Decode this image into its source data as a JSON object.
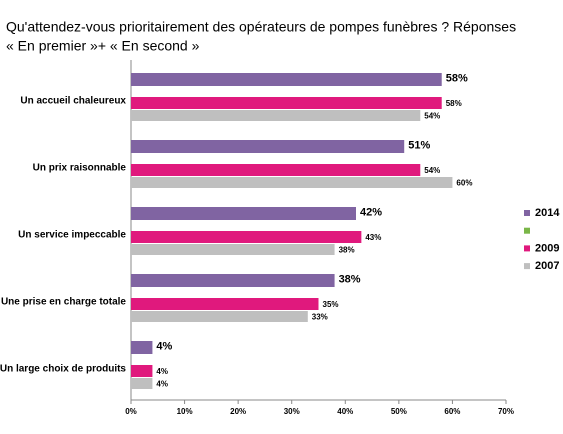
{
  "chart_data": {
    "type": "bar",
    "orientation": "horizontal",
    "title": "Qu'attendez-vous prioritairement des opérateurs de pompes funèbres ? Réponses",
    "subtitle": "« En premier »+ « En second »",
    "categories": [
      "Un accueil chaleureux",
      "Un prix raisonnable",
      "Un service impeccable",
      "Une prise en charge totale",
      "Un large choix de produits"
    ],
    "series": [
      {
        "name": "2014",
        "color": "#8064a2",
        "values": [
          58,
          51,
          42,
          38,
          4
        ],
        "value_labels": [
          "58%",
          "51%",
          "42%",
          "38%",
          "4%"
        ]
      },
      {
        "name": null,
        "color": "#7ab648",
        "values": [
          null,
          null,
          null,
          null,
          null
        ]
      },
      {
        "name": "2009",
        "color": "#e0197d",
        "values": [
          58,
          54,
          43,
          35,
          4
        ],
        "value_labels": [
          "58%",
          "54%",
          "43%",
          "35%",
          "4%"
        ]
      },
      {
        "name": "2007",
        "color": "#bfbfbf",
        "values": [
          54,
          60,
          38,
          33,
          4
        ],
        "value_labels": [
          "54%",
          "60%",
          "38%",
          "33%",
          "4%"
        ]
      }
    ],
    "xlim": [
      0,
      70
    ],
    "xticks": [
      {
        "value": 0,
        "label": "0%"
      },
      {
        "value": 10,
        "label": "10%"
      },
      {
        "value": 20,
        "label": "20%"
      },
      {
        "value": 30,
        "label": "30%"
      },
      {
        "value": 40,
        "label": "40%"
      },
      {
        "value": 50,
        "label": "50%"
      },
      {
        "value": 60,
        "label": "60%"
      },
      {
        "value": 70,
        "label": "70%"
      }
    ],
    "legend": "right"
  }
}
